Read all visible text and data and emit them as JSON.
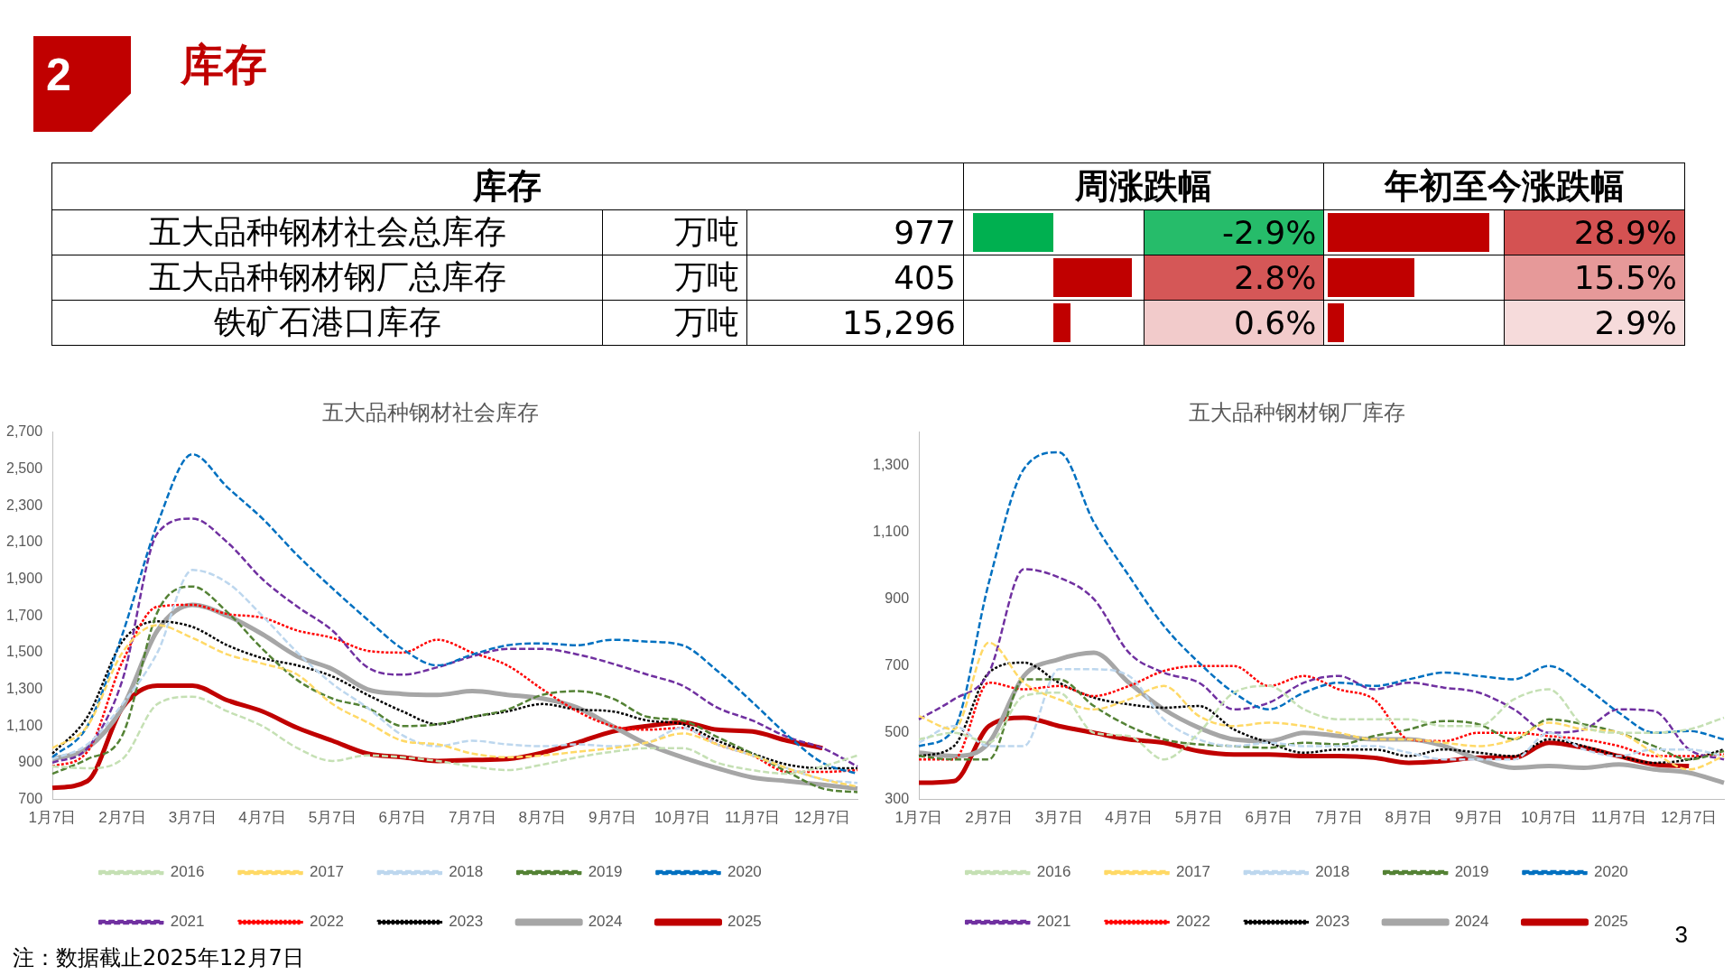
{
  "chart_data": [
    {
      "type": "other",
      "title": "库存",
      "ylabel": "库存",
      "categories": [
        "五大品种钢材社会总库存",
        "五大品种钢材钢厂总库存",
        "铁矿石港口库存"
      ],
      "series": [
        {
          "name": "万吨",
          "values": [
            977,
            405,
            15296
          ],
          "value_labels": [
            "977",
            "405",
            "15,296"
          ]
        },
        {
          "name": "周涨跌幅",
          "values": [
            -2.9,
            2.8,
            0.6
          ],
          "value_labels": [
            "-2.9%",
            "2.8%",
            "0.6%"
          ],
          "colors": [
            "#00b050",
            "#c00000",
            "#c00000"
          ]
        },
        {
          "name": "年初至今涨跌幅",
          "values": [
            28.9,
            15.5,
            2.9
          ],
          "value_labels": [
            "28.9%",
            "15.5%",
            "2.9%"
          ],
          "colors": [
            "#c00000",
            "#c00000",
            "#c00000"
          ]
        }
      ],
      "annotations": [
        "2",
        "注：数据截止2025年12月7日",
        "3"
      ]
    },
    {
      "type": "line",
      "title": "五大品种钢材社会库存",
      "categories": [
        "1月7日",
        null,
        "2月7日",
        null,
        "3月7日",
        null,
        "4月7日",
        null,
        "5月7日",
        null,
        "6月7日",
        null,
        "7月7日",
        null,
        "8月7日",
        null,
        "9月7日",
        null,
        "10月7日",
        null,
        "11月7日",
        null,
        "12月7日",
        null
      ],
      "ylim": [
        700,
        2700
      ],
      "yticks": [
        700,
        900,
        {
          "value": 1100,
          "label": "1,100"
        },
        {
          "value": 1300,
          "label": "1,300"
        },
        {
          "value": 1500,
          "label": "1,500"
        },
        {
          "value": 1700,
          "label": "1,700"
        },
        {
          "value": 1900,
          "label": "1,900"
        },
        {
          "value": 2100,
          "label": "2,100"
        },
        {
          "value": 2300,
          "label": "2,300"
        },
        {
          "value": 2500,
          "label": "2,500"
        },
        {
          "value": 2700,
          "label": "2,700"
        }
      ],
      "grid": false,
      "legend": "bottom",
      "series": [
        {
          "name": "2016",
          "color": "#c5e0b4",
          "line_style": "dashed",
          "values": [
            880,
            870,
            920,
            1220,
            1260,
            1180,
            1100,
            980,
            910,
            940,
            930,
            910,
            880,
            860,
            890,
            930,
            960,
            980,
            980,
            900,
            860,
            840,
            880,
            940
          ]
        },
        {
          "name": "2017",
          "color": "#ffd966",
          "line_style": "dashed",
          "values": [
            980,
            1100,
            1500,
            1650,
            1580,
            1490,
            1440,
            1380,
            1220,
            1120,
            1020,
            1000,
            950,
            930,
            940,
            960,
            980,
            1010,
            1060,
            1000,
            940,
            870,
            810,
            770
          ]
        },
        {
          "name": "2018",
          "color": "#bdd7ee",
          "line_style": "dashed",
          "values": [
            920,
            1000,
            1220,
            1500,
            1950,
            1880,
            1700,
            1500,
            1330,
            1200,
            1050,
            990,
            1020,
            1000,
            990,
            1000,
            990,
            1010,
            1090,
            1000,
            940,
            870,
            810,
            790
          ]
        },
        {
          "name": "2019",
          "color": "#548235",
          "line_style": "dashed",
          "values": [
            840,
            920,
            1050,
            1720,
            1860,
            1720,
            1520,
            1350,
            1250,
            1200,
            1100,
            1110,
            1150,
            1190,
            1270,
            1290,
            1250,
            1150,
            1130,
            1040,
            950,
            850,
            760,
            740
          ]
        },
        {
          "name": "2020",
          "color": "#0070c0",
          "line_style": "dashed",
          "values": [
            930,
            1100,
            1600,
            2200,
            2580,
            2400,
            2230,
            2030,
            1850,
            1680,
            1520,
            1430,
            1490,
            1540,
            1550,
            1540,
            1570,
            1560,
            1540,
            1400,
            1230,
            1050,
            900,
            840
          ]
        },
        {
          "name": "2021",
          "color": "#7030a0",
          "line_style": "dashed",
          "values": [
            900,
            980,
            1350,
            2150,
            2230,
            2100,
            1900,
            1750,
            1620,
            1420,
            1380,
            1420,
            1480,
            1520,
            1520,
            1490,
            1440,
            1380,
            1320,
            1200,
            1130,
            1040,
            980,
            880
          ]
        },
        {
          "name": "2022",
          "color": "#ff0000",
          "line_style": "dotted",
          "values": [
            880,
            960,
            1450,
            1750,
            1760,
            1710,
            1690,
            1620,
            1580,
            1510,
            1500,
            1570,
            1500,
            1430,
            1300,
            1180,
            1100,
            1080,
            1090,
            1000,
            940,
            850,
            850,
            860
          ]
        },
        {
          "name": "2023",
          "color": "#000000",
          "line_style": "dotted",
          "values": [
            950,
            1150,
            1560,
            1670,
            1640,
            1540,
            1470,
            1430,
            1370,
            1270,
            1180,
            1110,
            1150,
            1180,
            1220,
            1190,
            1180,
            1130,
            1110,
            1020,
            950,
            890,
            870,
            870
          ]
        },
        {
          "name": "2024",
          "color": "#a6a6a6",
          "line_style": "solid",
          "values": [
            920,
            980,
            1200,
            1620,
            1760,
            1700,
            1600,
            1480,
            1410,
            1300,
            1275,
            1270,
            1290,
            1270,
            1250,
            1200,
            1100,
            1000,
            930,
            870,
            820,
            800,
            780,
            760
          ]
        },
        {
          "name": "2025",
          "color": "#c00000",
          "line_style": "solid",
          "values": [
            763,
            800,
            1200,
            1320,
            1320,
            1240,
            1180,
            1090,
            1020,
            950,
            930,
            910,
            915,
            920,
            955,
            1010,
            1070,
            1100,
            1120,
            1080,
            1070,
            1020,
            980,
            null
          ]
        }
      ]
    },
    {
      "type": "line",
      "title": "五大品种钢材钢厂库存",
      "categories": [
        "1月7日",
        null,
        "2月7日",
        null,
        "3月7日",
        null,
        "4月7日",
        null,
        "5月7日",
        null,
        "6月7日",
        null,
        "7月7日",
        null,
        "8月7日",
        null,
        "9月7日",
        null,
        "10月7日",
        null,
        "11月7日",
        null,
        "12月7日",
        null
      ],
      "ylim": [
        300,
        1400
      ],
      "yticks": [
        300,
        500,
        700,
        900,
        {
          "value": 1100,
          "label": "1,100"
        },
        {
          "value": 1300,
          "label": "1,300"
        }
      ],
      "grid": false,
      "legend": "bottom",
      "series": [
        {
          "name": "2016",
          "color": "#c5e0b4",
          "line_style": "dashed",
          "values": [
            480,
            500,
            470,
            610,
            620,
            500,
            490,
            420,
            500,
            620,
            640,
            570,
            540,
            540,
            540,
            520,
            520,
            600,
            630,
            520,
            500,
            500,
            510,
            545
          ]
        },
        {
          "name": "2017",
          "color": "#ffd966",
          "line_style": "dashed",
          "values": [
            550,
            510,
            770,
            650,
            600,
            570,
            600,
            640,
            550,
            520,
            530,
            520,
            500,
            480,
            480,
            470,
            460,
            480,
            530,
            510,
            500,
            440,
            390,
            430
          ]
        },
        {
          "name": "2018",
          "color": "#bdd7ee",
          "line_style": "dashed",
          "values": [
            470,
            520,
            460,
            460,
            690,
            690,
            670,
            540,
            480,
            460,
            470,
            460,
            460,
            460,
            440,
            420,
            420,
            420,
            500,
            450,
            430,
            450,
            450,
            430
          ]
        },
        {
          "name": "2019",
          "color": "#548235",
          "line_style": "dashed",
          "values": [
            430,
            420,
            420,
            660,
            660,
            580,
            520,
            480,
            465,
            460,
            455,
            470,
            465,
            490,
            510,
            535,
            525,
            480,
            540,
            525,
            500,
            460,
            420,
            445
          ]
        },
        {
          "name": "2020",
          "color": "#0070c0",
          "line_style": "dashed",
          "values": [
            460,
            510,
            950,
            1290,
            1340,
            1130,
            970,
            820,
            710,
            620,
            570,
            620,
            650,
            640,
            660,
            680,
            670,
            660,
            700,
            640,
            560,
            500,
            505,
            480
          ]
        },
        {
          "name": "2021",
          "color": "#7030a0",
          "line_style": "dashed",
          "values": [
            540,
            600,
            680,
            990,
            965,
            900,
            740,
            680,
            650,
            570,
            590,
            650,
            670,
            630,
            650,
            635,
            620,
            570,
            500,
            510,
            570,
            565,
            450,
            420
          ]
        },
        {
          "name": "2022",
          "color": "#ff0000",
          "line_style": "dotted",
          "values": [
            420,
            420,
            650,
            630,
            640,
            610,
            640,
            685,
            700,
            700,
            640,
            670,
            630,
            600,
            480,
            475,
            500,
            500,
            490,
            480,
            460,
            430,
            430,
            435
          ]
        },
        {
          "name": "2023",
          "color": "#000000",
          "line_style": "dotted",
          "values": [
            430,
            460,
            680,
            710,
            650,
            605,
            585,
            575,
            580,
            510,
            470,
            440,
            450,
            450,
            430,
            450,
            440,
            430,
            480,
            460,
            430,
            410,
            420,
            450
          ]
        },
        {
          "name": "2024",
          "color": "#a6a6a6",
          "line_style": "solid",
          "values": [
            440,
            430,
            470,
            670,
            720,
            740,
            650,
            570,
            515,
            480,
            475,
            500,
            490,
            480,
            480,
            460,
            420,
            395,
            400,
            395,
            405,
            390,
            380,
            350
          ]
        },
        {
          "name": "2025",
          "color": "#c00000",
          "line_style": "solid",
          "values": [
            350,
            355,
            520,
            545,
            520,
            500,
            480,
            470,
            445,
            435,
            435,
            430,
            430,
            425,
            410,
            415,
            425,
            425,
            470,
            455,
            430,
            405,
            400,
            null
          ]
        }
      ]
    }
  ]
}
